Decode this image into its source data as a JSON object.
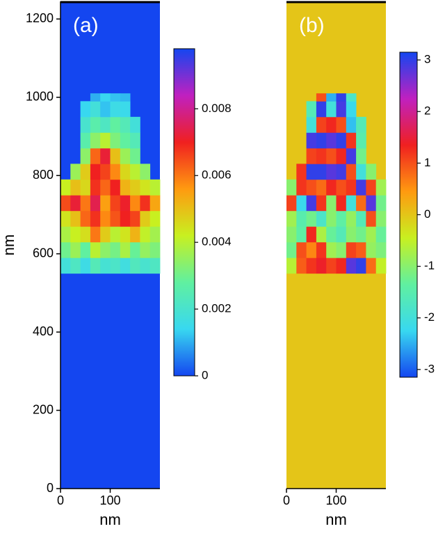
{
  "chart_data": [
    {
      "type": "heatmap",
      "panel_label": "(a)",
      "xlabel": "nm",
      "ylabel": "nm",
      "xlim": [
        0,
        200
      ],
      "ylim": [
        0,
        1245
      ],
      "xticks": [
        0,
        100
      ],
      "yticks": [
        0,
        200,
        400,
        600,
        800,
        1000,
        1200
      ],
      "x_edges": [
        0,
        20,
        40,
        60,
        80,
        100,
        120,
        140,
        160,
        180,
        200
      ],
      "y_edges": [
        550,
        590,
        630,
        670,
        710,
        750,
        790,
        830,
        870,
        910,
        950,
        990,
        1010
      ],
      "fill_value": 0,
      "clim": [
        0,
        0.0098
      ],
      "cticks": [
        0,
        0.002,
        0.004,
        0.006,
        0.008
      ],
      "colormap": [
        "#1446f0",
        "#38d8f0",
        "#60f0a0",
        "#c8f020",
        "#ff9a10",
        "#f02020",
        "#c020c0",
        "#1446f0"
      ],
      "z": [
        [
          0.0018,
          0.0022,
          0.0016,
          0.0024,
          0.0019,
          0.0021,
          0.0017,
          0.0023,
          0.002,
          0.0022
        ],
        [
          0.003,
          0.0036,
          0.0028,
          0.004,
          0.0034,
          0.0031,
          0.0038,
          0.0029,
          0.0035,
          0.0032
        ],
        [
          0.0038,
          0.0042,
          0.0045,
          0.006,
          0.0048,
          0.004,
          0.0044,
          0.0052,
          0.0041,
          0.0037
        ],
        [
          0.0044,
          0.005,
          0.0062,
          0.0068,
          0.0058,
          0.0064,
          0.007,
          0.0066,
          0.0048,
          0.0042
        ],
        [
          0.0065,
          0.0072,
          0.006,
          0.0074,
          0.0055,
          0.0066,
          0.0071,
          0.0058,
          0.0068,
          0.0054
        ],
        [
          0.0042,
          0.005,
          0.0046,
          0.0068,
          0.0062,
          0.007,
          0.0052,
          0.0048,
          0.0044,
          0.004
        ],
        [
          null,
          0.0036,
          0.0048,
          0.007,
          0.0066,
          0.0058,
          0.0046,
          0.004,
          0.0034,
          null
        ],
        [
          null,
          null,
          0.0034,
          0.0062,
          0.0072,
          0.005,
          0.0036,
          0.003,
          null,
          null
        ],
        [
          null,
          null,
          0.0026,
          0.0034,
          0.004,
          0.0032,
          0.0028,
          0.0024,
          null,
          null
        ],
        [
          null,
          null,
          0.002,
          0.0026,
          0.0022,
          0.0028,
          0.0024,
          0.0018,
          null,
          null
        ],
        [
          null,
          null,
          0.0014,
          0.0018,
          0.0012,
          0.0016,
          0.0015,
          null,
          null,
          null
        ],
        [
          null,
          null,
          null,
          0.001,
          0.0014,
          0.0012,
          0.0011,
          null,
          null,
          null
        ]
      ]
    },
    {
      "type": "heatmap",
      "panel_label": "(b)",
      "xlabel": "nm",
      "xlim": [
        0,
        200
      ],
      "ylim": [
        0,
        1245
      ],
      "xticks": [
        0,
        100
      ],
      "x_edges": [
        0,
        20,
        40,
        60,
        80,
        100,
        120,
        140,
        160,
        180,
        200
      ],
      "y_edges": [
        550,
        590,
        630,
        670,
        710,
        750,
        790,
        830,
        870,
        910,
        950,
        990,
        1010
      ],
      "fill_value": 0,
      "clim": [
        -3.15,
        3.15
      ],
      "cticks": [
        -3,
        -2,
        -1,
        0,
        1,
        2,
        3
      ],
      "colormap": [
        "#1446f0",
        "#38d8f0",
        "#60f0a0",
        "#c8f020",
        "#ff9a10",
        "#f02020",
        "#c020c0",
        "#1446f0"
      ],
      "z": [
        [
          -0.6,
          0.9,
          1.2,
          1.4,
          1.1,
          1.3,
          2.8,
          3.0,
          0.8,
          -0.5
        ],
        [
          -1.2,
          1.0,
          0.6,
          1.2,
          -0.8,
          -1.0,
          1.1,
          0.9,
          -0.9,
          -1.1
        ],
        [
          -1.0,
          -1.4,
          1.3,
          -0.7,
          -1.3,
          -1.6,
          -1.0,
          -1.2,
          -0.8,
          -1.3
        ],
        [
          -0.8,
          -1.5,
          -1.2,
          -1.8,
          -1.0,
          -1.4,
          -0.9,
          -1.6,
          1.0,
          -1.0
        ],
        [
          1.1,
          -2.2,
          2.9,
          1.2,
          -1.0,
          1.3,
          -2.0,
          0.8,
          2.8,
          -1.2
        ],
        [
          -1.0,
          1.2,
          1.0,
          0.8,
          1.3,
          1.0,
          1.2,
          2.9,
          1.1,
          -0.8
        ],
        [
          null,
          1.2,
          3.0,
          3.0,
          2.8,
          2.9,
          1.0,
          -2.0,
          -1.0,
          null
        ],
        [
          null,
          null,
          1.1,
          1.2,
          1.0,
          1.3,
          2.9,
          -1.2,
          null,
          null
        ],
        [
          null,
          null,
          2.9,
          3.0,
          2.8,
          3.0,
          1.2,
          -1.5,
          null,
          null
        ],
        [
          null,
          null,
          -2.0,
          1.1,
          1.3,
          1.0,
          -2.4,
          -1.6,
          null,
          null
        ],
        [
          null,
          null,
          -1.6,
          3.0,
          -2.0,
          2.9,
          -2.2,
          null,
          null,
          null
        ],
        [
          null,
          null,
          null,
          1.0,
          -2.5,
          3.0,
          -1.8,
          null,
          null,
          null
        ]
      ]
    }
  ]
}
